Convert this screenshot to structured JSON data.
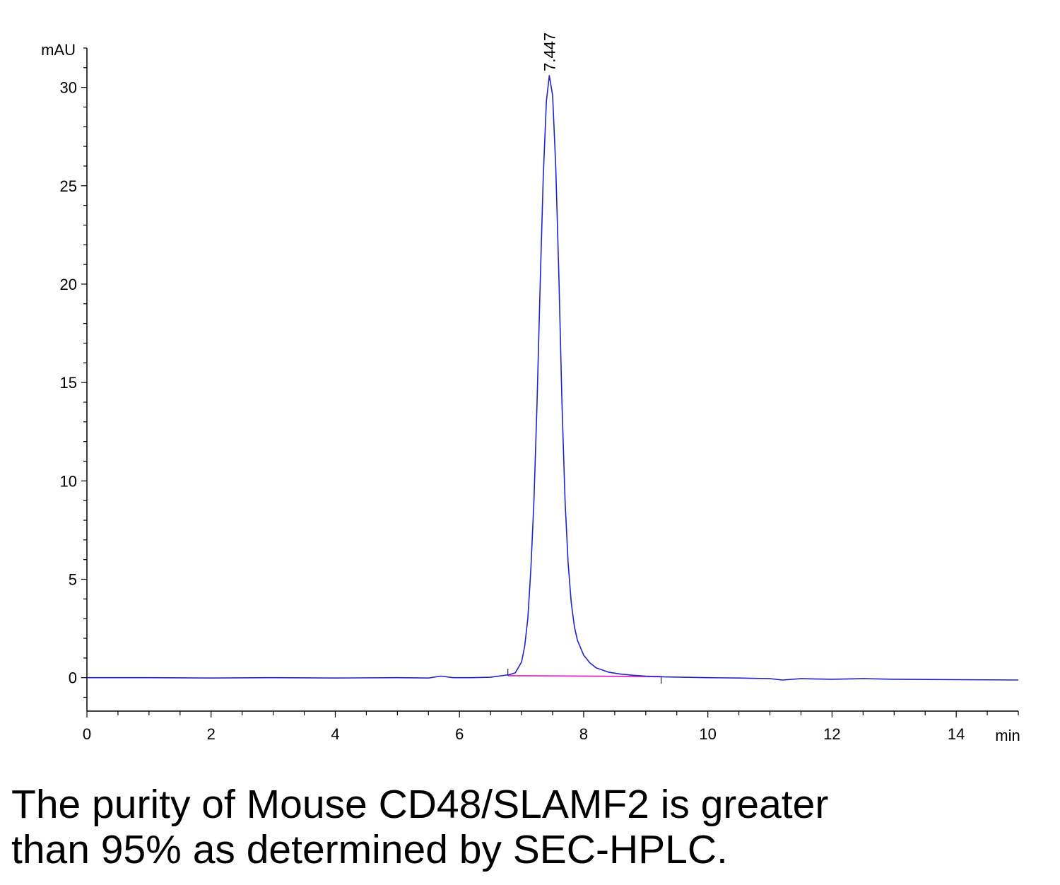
{
  "chart_data": {
    "type": "line",
    "title": "",
    "xlabel": "min",
    "ylabel": "mAU",
    "xlim": [
      0,
      15
    ],
    "ylim": [
      -1.7,
      32.5
    ],
    "x_ticks": [
      0,
      2,
      4,
      6,
      8,
      10,
      12,
      14
    ],
    "y_ticks": [
      0,
      5,
      10,
      15,
      20,
      25,
      30
    ],
    "grid": false,
    "legend": "none",
    "colors": {
      "trace": "#2222cc",
      "baseline": "#e040c8",
      "axis": "#000000"
    },
    "series": [
      {
        "x": [
          0,
          1,
          2,
          3,
          4,
          5,
          5.5,
          5.7,
          5.9,
          6.2,
          6.5,
          6.8,
          6.9,
          7.0,
          7.05,
          7.1,
          7.15,
          7.2,
          7.25,
          7.3,
          7.35,
          7.4,
          7.447,
          7.5,
          7.55,
          7.6,
          7.65,
          7.7,
          7.75,
          7.8,
          7.85,
          7.9,
          8.0,
          8.1,
          8.2,
          8.4,
          8.6,
          8.8,
          9.0,
          9.3,
          9.6,
          10,
          10.5,
          11,
          11.2,
          11.5,
          12,
          12.5,
          13,
          14,
          15
        ],
        "values": [
          0.0,
          0.0,
          -0.02,
          0.0,
          -0.02,
          0.0,
          -0.02,
          0.08,
          0.0,
          0.0,
          0.02,
          0.15,
          0.25,
          0.8,
          1.6,
          3.0,
          5.5,
          9.0,
          14.0,
          20.0,
          25.5,
          29.3,
          30.6,
          29.6,
          26.0,
          20.5,
          14.0,
          9.0,
          5.8,
          3.8,
          2.6,
          1.9,
          1.15,
          0.75,
          0.5,
          0.28,
          0.18,
          0.12,
          0.08,
          0.04,
          0.02,
          0.0,
          -0.02,
          -0.05,
          -0.12,
          -0.05,
          -0.08,
          -0.05,
          -0.08,
          -0.1,
          -0.12
        ]
      }
    ],
    "baseline": {
      "x": [
        6.78,
        9.25
      ],
      "values": [
        0.1,
        0.05
      ]
    },
    "annotations": [
      {
        "text": "7.447",
        "x": 7.447,
        "y": 30.6
      }
    ]
  },
  "caption": {
    "line1": "The purity of Mouse CD48/SLAMF2 is greater",
    "line2": "than 95% as determined by SEC-HPLC."
  }
}
